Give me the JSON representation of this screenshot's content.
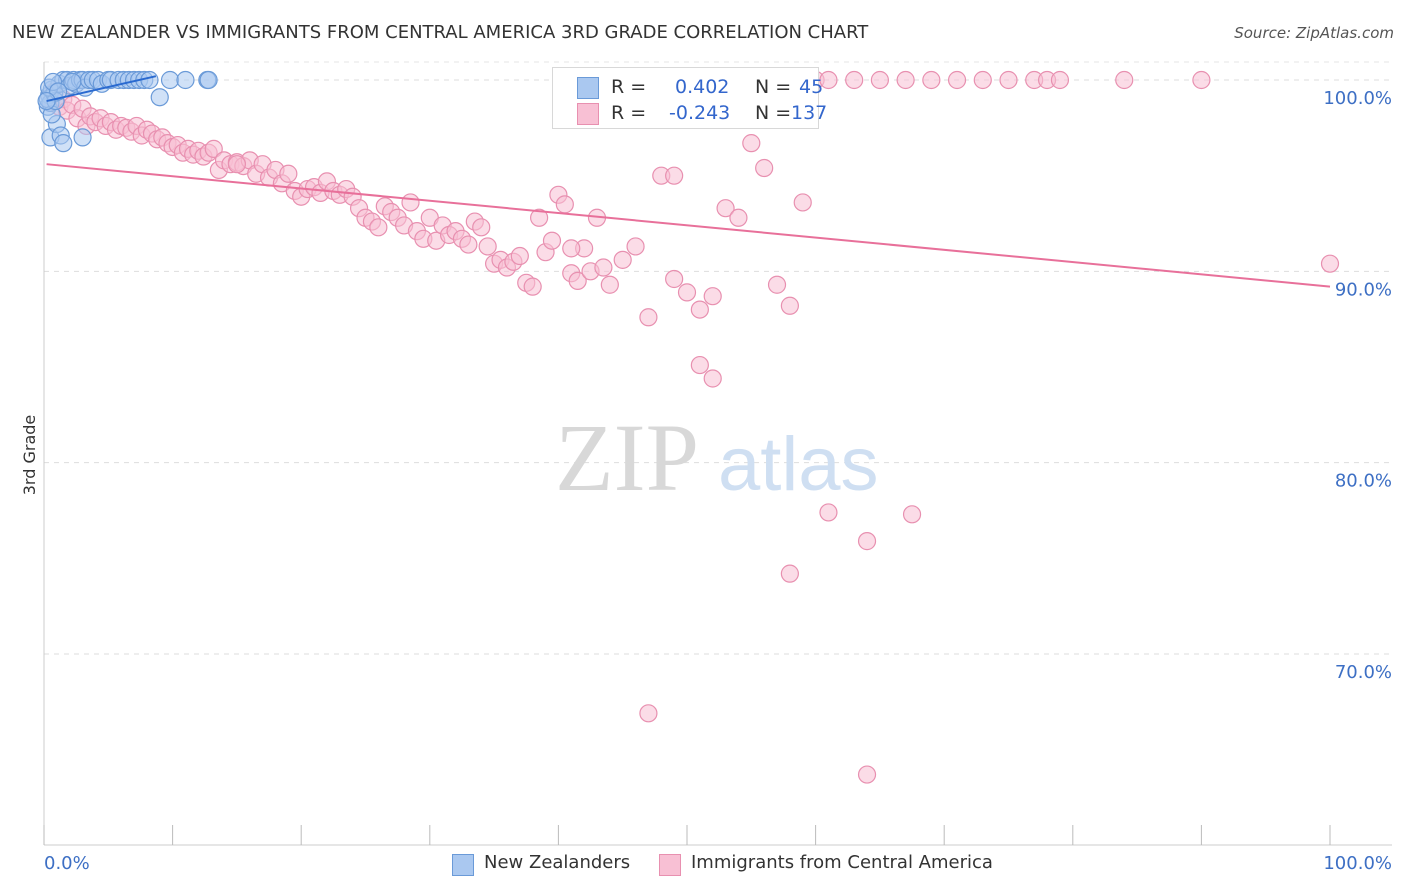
{
  "title": "NEW ZEALANDER VS IMMIGRANTS FROM CENTRAL AMERICA 3RD GRADE CORRELATION CHART",
  "source": "Source: ZipAtlas.com",
  "watermark": {
    "zip": "ZIP",
    "atlas": "atlas"
  },
  "legend": {
    "r_label": "R =",
    "n_label": "N =",
    "rows": [
      {
        "r": "0.402",
        "n": "45",
        "color": "#aac8f0",
        "border": "#6a9ad8"
      },
      {
        "r": "-0.243",
        "n": "137",
        "color": "#f8c0d4",
        "border": "#e890b0"
      }
    ]
  },
  "bottom_legend": [
    {
      "label": "New Zealanders",
      "color": "#aac8f0",
      "border": "#6a9ad8"
    },
    {
      "label": "Immigrants from Central America",
      "color": "#f8c0d4",
      "border": "#e890b0"
    }
  ],
  "chart_data": {
    "type": "scatter",
    "title": "NEW ZEALANDER VS IMMIGRANTS FROM CENTRAL AMERICA 3RD GRADE CORRELATION CHART",
    "xlabel": "",
    "ylabel": "3rd Grade",
    "xlim": [
      0,
      100
    ],
    "ylim": [
      61,
      101
    ],
    "x_tick_labels": [
      "0.0%",
      "100.0%"
    ],
    "y_ticks": [
      70,
      80,
      90,
      100
    ],
    "y_tick_labels": [
      "70.0%",
      "80.0%",
      "90.0%",
      "100.0%"
    ],
    "grid": true,
    "legend_position": "top-center",
    "series": [
      {
        "name": "New Zealanders",
        "color": "#6a9ad8",
        "fill": "#aac8f0",
        "trend": {
          "x": [
            0.2,
            8.7
          ],
          "y": [
            98.9,
            100.2
          ],
          "color": "#2a6ad0"
        },
        "points": [
          [
            0.3,
            98.6
          ],
          [
            0.4,
            99.2
          ],
          [
            0.5,
            98.8
          ],
          [
            0.6,
            99.5
          ],
          [
            0.3,
            99.0
          ],
          [
            0.8,
            99.3
          ],
          [
            0.5,
            97.0
          ],
          [
            1.0,
            97.7
          ],
          [
            1.2,
            99.8
          ],
          [
            1.5,
            100.0
          ],
          [
            1.8,
            100.0
          ],
          [
            2.0,
            99.7
          ],
          [
            2.3,
            100.0
          ],
          [
            2.5,
            99.8
          ],
          [
            2.8,
            100.0
          ],
          [
            3.0,
            100.0
          ],
          [
            3.2,
            99.6
          ],
          [
            3.5,
            100.0
          ],
          [
            3.8,
            100.0
          ],
          [
            4.2,
            100.0
          ],
          [
            4.5,
            99.8
          ],
          [
            5.0,
            100.0
          ],
          [
            5.2,
            100.0
          ],
          [
            5.8,
            100.0
          ],
          [
            6.2,
            100.0
          ],
          [
            6.6,
            100.0
          ],
          [
            7.0,
            100.0
          ],
          [
            7.4,
            100.0
          ],
          [
            7.8,
            100.0
          ],
          [
            8.2,
            100.0
          ],
          [
            9.0,
            99.1
          ],
          [
            9.8,
            100.0
          ],
          [
            11.0,
            100.0
          ],
          [
            12.7,
            100.0
          ],
          [
            12.8,
            100.0
          ],
          [
            0.6,
            98.2
          ],
          [
            0.9,
            98.9
          ],
          [
            1.3,
            97.1
          ],
          [
            1.5,
            96.7
          ],
          [
            3.0,
            97.0
          ],
          [
            0.4,
            99.6
          ],
          [
            0.7,
            99.9
          ],
          [
            1.1,
            99.4
          ],
          [
            2.2,
            99.9
          ],
          [
            0.2,
            98.9
          ]
        ]
      },
      {
        "name": "Immigrants from Central America",
        "color": "#e890b0",
        "fill": "#f8c0d4",
        "trend": {
          "x": [
            0.2,
            100
          ],
          "y": [
            95.6,
            89.2
          ],
          "color": "#e8709a"
        },
        "points": [
          [
            0.5,
            98.8
          ],
          [
            0.8,
            99.4
          ],
          [
            1.2,
            98.6
          ],
          [
            1.5,
            99.0
          ],
          [
            1.8,
            98.4
          ],
          [
            2.2,
            98.7
          ],
          [
            2.6,
            98.0
          ],
          [
            3.0,
            98.5
          ],
          [
            3.3,
            97.6
          ],
          [
            3.6,
            98.1
          ],
          [
            4.0,
            97.8
          ],
          [
            4.4,
            98.0
          ],
          [
            4.8,
            97.6
          ],
          [
            5.2,
            97.8
          ],
          [
            5.6,
            97.4
          ],
          [
            6.0,
            97.6
          ],
          [
            6.4,
            97.5
          ],
          [
            6.8,
            97.3
          ],
          [
            7.2,
            97.6
          ],
          [
            7.6,
            97.1
          ],
          [
            8.0,
            97.4
          ],
          [
            8.4,
            97.2
          ],
          [
            8.8,
            96.9
          ],
          [
            9.2,
            97.0
          ],
          [
            9.6,
            96.7
          ],
          [
            10.0,
            96.5
          ],
          [
            10.4,
            96.6
          ],
          [
            10.8,
            96.2
          ],
          [
            11.2,
            96.4
          ],
          [
            11.6,
            96.1
          ],
          [
            12.0,
            96.3
          ],
          [
            12.4,
            96.0
          ],
          [
            12.8,
            96.2
          ],
          [
            13.2,
            96.4
          ],
          [
            13.6,
            95.3
          ],
          [
            14.0,
            95.8
          ],
          [
            14.5,
            95.6
          ],
          [
            15.0,
            95.7
          ],
          [
            15.5,
            95.5
          ],
          [
            16.0,
            95.8
          ],
          [
            16.5,
            95.1
          ],
          [
            17.0,
            95.6
          ],
          [
            17.5,
            94.9
          ],
          [
            18.0,
            95.3
          ],
          [
            18.5,
            94.6
          ],
          [
            19.0,
            95.1
          ],
          [
            19.5,
            94.2
          ],
          [
            20.0,
            93.9
          ],
          [
            20.5,
            94.3
          ],
          [
            21.0,
            94.4
          ],
          [
            21.5,
            94.1
          ],
          [
            22.0,
            94.7
          ],
          [
            22.5,
            94.2
          ],
          [
            23.0,
            94.0
          ],
          [
            23.5,
            94.3
          ],
          [
            24.0,
            93.9
          ],
          [
            24.5,
            93.3
          ],
          [
            25.0,
            92.8
          ],
          [
            25.5,
            92.6
          ],
          [
            26.0,
            92.3
          ],
          [
            26.5,
            93.4
          ],
          [
            27.0,
            93.1
          ],
          [
            27.5,
            92.8
          ],
          [
            28.0,
            92.4
          ],
          [
            28.5,
            93.6
          ],
          [
            29.0,
            92.1
          ],
          [
            29.5,
            91.7
          ],
          [
            30.0,
            92.8
          ],
          [
            30.5,
            91.6
          ],
          [
            31.0,
            92.4
          ],
          [
            31.5,
            91.9
          ],
          [
            32.0,
            92.1
          ],
          [
            32.5,
            91.7
          ],
          [
            33.0,
            91.4
          ],
          [
            33.5,
            92.6
          ],
          [
            34.0,
            92.3
          ],
          [
            34.5,
            91.3
          ],
          [
            35.0,
            90.4
          ],
          [
            35.5,
            90.6
          ],
          [
            36.0,
            90.2
          ],
          [
            36.5,
            90.5
          ],
          [
            37.0,
            90.8
          ],
          [
            37.5,
            89.4
          ],
          [
            38.0,
            89.2
          ],
          [
            38.5,
            92.8
          ],
          [
            39.0,
            91.0
          ],
          [
            39.5,
            91.6
          ],
          [
            40.0,
            94.0
          ],
          [
            40.5,
            93.5
          ],
          [
            41.0,
            89.9
          ],
          [
            41.5,
            89.5
          ],
          [
            42.0,
            91.2
          ],
          [
            42.5,
            90.0
          ],
          [
            43.0,
            92.8
          ],
          [
            43.5,
            90.2
          ],
          [
            44.0,
            89.3
          ],
          [
            45.0,
            90.6
          ],
          [
            46.0,
            91.3
          ],
          [
            47.0,
            87.6
          ],
          [
            48.0,
            95.0
          ],
          [
            49.0,
            89.6
          ],
          [
            50.0,
            88.9
          ],
          [
            51.0,
            88.0
          ],
          [
            52.0,
            88.7
          ],
          [
            53.0,
            93.3
          ],
          [
            54.0,
            92.8
          ],
          [
            55.0,
            96.7
          ],
          [
            56.0,
            95.4
          ],
          [
            57.0,
            89.3
          ],
          [
            58.0,
            88.2
          ],
          [
            59.0,
            93.6
          ],
          [
            60.0,
            100.0
          ],
          [
            61.0,
            100.0
          ],
          [
            63.0,
            100.0
          ],
          [
            65.0,
            100.0
          ],
          [
            67.0,
            100.0
          ],
          [
            69.0,
            100.0
          ],
          [
            71.0,
            100.0
          ],
          [
            73.0,
            100.0
          ],
          [
            75.0,
            100.0
          ],
          [
            77.0,
            100.0
          ],
          [
            78.0,
            100.0
          ],
          [
            79.0,
            100.0
          ],
          [
            84.0,
            100.0
          ],
          [
            90.0,
            100.0
          ],
          [
            100.0,
            90.4
          ],
          [
            51.0,
            85.1
          ],
          [
            52.0,
            84.4
          ],
          [
            61.0,
            77.4
          ],
          [
            64.0,
            75.9
          ],
          [
            67.5,
            77.3
          ],
          [
            58.0,
            74.2
          ],
          [
            47.0,
            66.9
          ],
          [
            64.0,
            63.7
          ],
          [
            41.0,
            91.2
          ],
          [
            49.0,
            95.0
          ],
          [
            15.0,
            95.6
          ]
        ]
      }
    ]
  }
}
